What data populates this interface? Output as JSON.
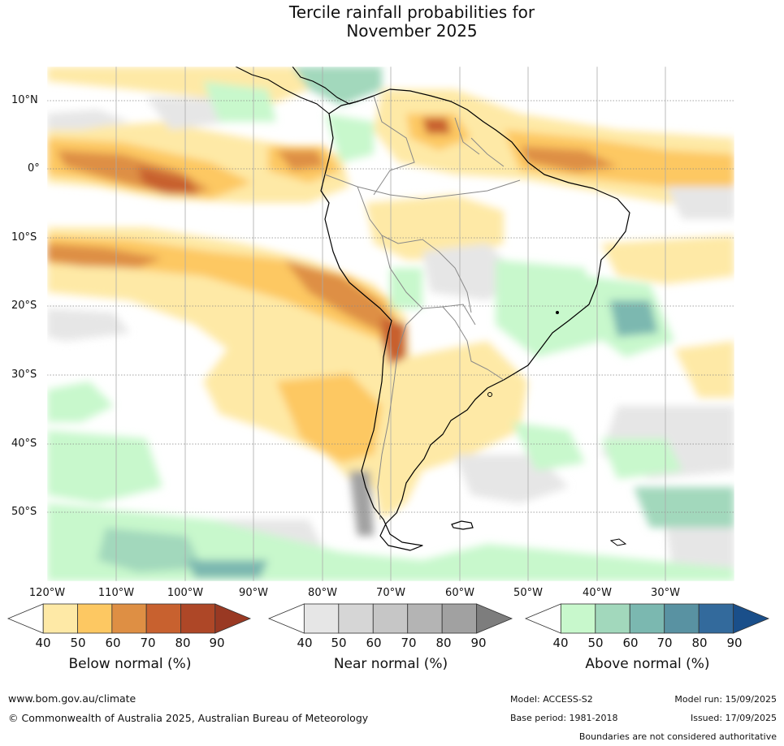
{
  "title": {
    "line1": "Tercile rainfall probabilities for",
    "line2": "November 2025"
  },
  "map": {
    "lat_labels": [
      "10°N",
      "0°",
      "10°S",
      "20°S",
      "30°S",
      "40°S",
      "50°S"
    ],
    "lon_labels": [
      "120°W",
      "110°W",
      "100°W",
      "90°W",
      "80°W",
      "70°W",
      "60°W",
      "50°W",
      "40°W",
      "30°W"
    ]
  },
  "legends": {
    "below": {
      "title": "Below normal (%)",
      "ticks": [
        "40",
        "50",
        "60",
        "70",
        "80",
        "90"
      ],
      "colors": [
        "#ffffff",
        "#fee9a6",
        "#fdc862",
        "#de8f44",
        "#c8612f",
        "#ae4727",
        "#993923"
      ]
    },
    "near": {
      "title": "Near normal (%)",
      "ticks": [
        "40",
        "50",
        "60",
        "70",
        "80",
        "90"
      ],
      "colors": [
        "#ffffff",
        "#e6e6e6",
        "#d6d6d6",
        "#c6c6c6",
        "#b4b4b4",
        "#a1a1a1",
        "#7d7d7d"
      ]
    },
    "above": {
      "title": "Above normal (%)",
      "ticks": [
        "40",
        "50",
        "60",
        "70",
        "80",
        "90"
      ],
      "colors": [
        "#ffffff",
        "#c8f8cc",
        "#a2d8bc",
        "#7bb8b0",
        "#5992a2",
        "#336a9c",
        "#1a4f8a"
      ]
    }
  },
  "footer": {
    "website": "www.bom.gov.au/climate",
    "copyright": "© Commonwealth of Australia 2025, Australian Bureau of Meteorology",
    "model": "Model: ACCESS-S2",
    "model_run": "Model run: 15/09/2025",
    "base_period": "Base period: 1981-2018",
    "issued": "Issued: 17/09/2025",
    "disclaimer": "Boundaries are not considered authoritative"
  }
}
